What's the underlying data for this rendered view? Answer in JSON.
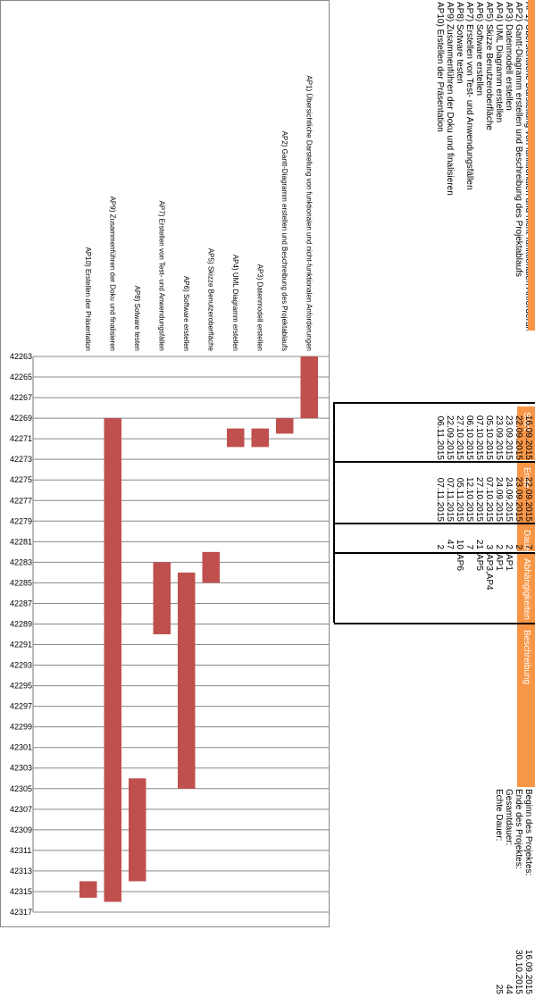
{
  "table": {
    "headers": [
      "Start",
      "Ende",
      "Dauer",
      "Abhängigkeiten",
      "Beschreibung"
    ],
    "rows": [
      {
        "name": "AP1) Übersichtliche Darstellung von funktionalen und nicht-funktionalen Anforderungen",
        "start": "16.09.2015",
        "end": "22.09.2015",
        "duration": "7",
        "dep": ""
      },
      {
        "name": "AP2) Gantt-Diagramm erstellen und Beschreibung des Projektablaufs",
        "start": "22.09.2015",
        "end": "23.09.2015",
        "duration": "2",
        "dep": ""
      },
      {
        "name": "AP3) Datenmodell erstellen",
        "start": "23.09.2015",
        "end": "24.09.2015",
        "duration": "2",
        "dep": "AP1"
      },
      {
        "name": "AP4) UML Diagramm erstellen",
        "start": "23.09.2015",
        "end": "24.09.2015",
        "duration": "2",
        "dep": "AP1"
      },
      {
        "name": "AP5) Skizze Benutzeroberfläche",
        "start": "05.10.2015",
        "end": "07.10.2015",
        "duration": "3",
        "dep": "AP3,AP4"
      },
      {
        "name": "AP6) Software erstellen",
        "start": "07.10.2015",
        "end": "27.10.2015",
        "duration": "21",
        "dep": "AP5"
      },
      {
        "name": "AP7) Erstellen von Test- und Anwendungsfällen",
        "start": "06.10.2015",
        "end": "12.10.2015",
        "duration": "7",
        "dep": ""
      },
      {
        "name": "AP8) Sotware testen",
        "start": "27.10.2015",
        "end": "05.11.2015",
        "duration": "10",
        "dep": "AP6"
      },
      {
        "name": "AP9) Zusammenführen der Doku und finalisieren",
        "start": "22.09.2015",
        "end": "07.11.2015",
        "duration": "47",
        "dep": ""
      },
      {
        "name": "AP10) Erstellen der Präsentation",
        "start": "06.11.2015",
        "end": "07.11.2015",
        "duration": "2",
        "dep": ""
      }
    ]
  },
  "project_info": {
    "labels": [
      "Beginn des Projektes:",
      "Ende des Projektes:",
      "Gesamtdauer:",
      "Echte Dauer:"
    ],
    "values": [
      "16.09.2015",
      "30.10.2015",
      "44",
      "25"
    ]
  },
  "colors": {
    "header": "#f79646",
    "bar": "#c0504d",
    "grid": "#888888"
  },
  "chart_data": {
    "type": "bar",
    "orientation": "gantt",
    "categories": [
      "AP1) Übersichtliche Darstellung von funktionalen und nicht-funktionalen Anforderungen",
      "AP2) Gantt-Diagramm erstellen und Beschreibung des Projektablaufs",
      "AP3) Datenmodell erstellen",
      "AP4) UML Diagramm erstellen",
      "AP5) Skizze Benutzeroberfläche",
      "AP6) Software erstellen",
      "AP7) Erstellen von Test- und Anwendungsfällen",
      "AP8) Sotware testen",
      "AP9) Zusammenführen der Doku und finalisieren",
      "AP10) Erstellen der Präsentation"
    ],
    "series": [
      {
        "start": [
          42263,
          42269,
          42270,
          42270,
          42282,
          42284,
          42283,
          42304,
          42269,
          42314
        ],
        "duration": [
          6,
          1.5,
          1.8,
          1.8,
          3,
          21,
          7,
          10,
          47,
          1.6
        ]
      }
    ],
    "ylim": [
      42263,
      42317
    ],
    "ticks": [
      42263,
      42265,
      42267,
      42269,
      42271,
      42273,
      42275,
      42277,
      42279,
      42281,
      42283,
      42285,
      42287,
      42289,
      42291,
      42293,
      42295,
      42297,
      42299,
      42301,
      42303,
      42305,
      42307,
      42309,
      42311,
      42313,
      42315,
      42317
    ],
    "grid": true
  }
}
